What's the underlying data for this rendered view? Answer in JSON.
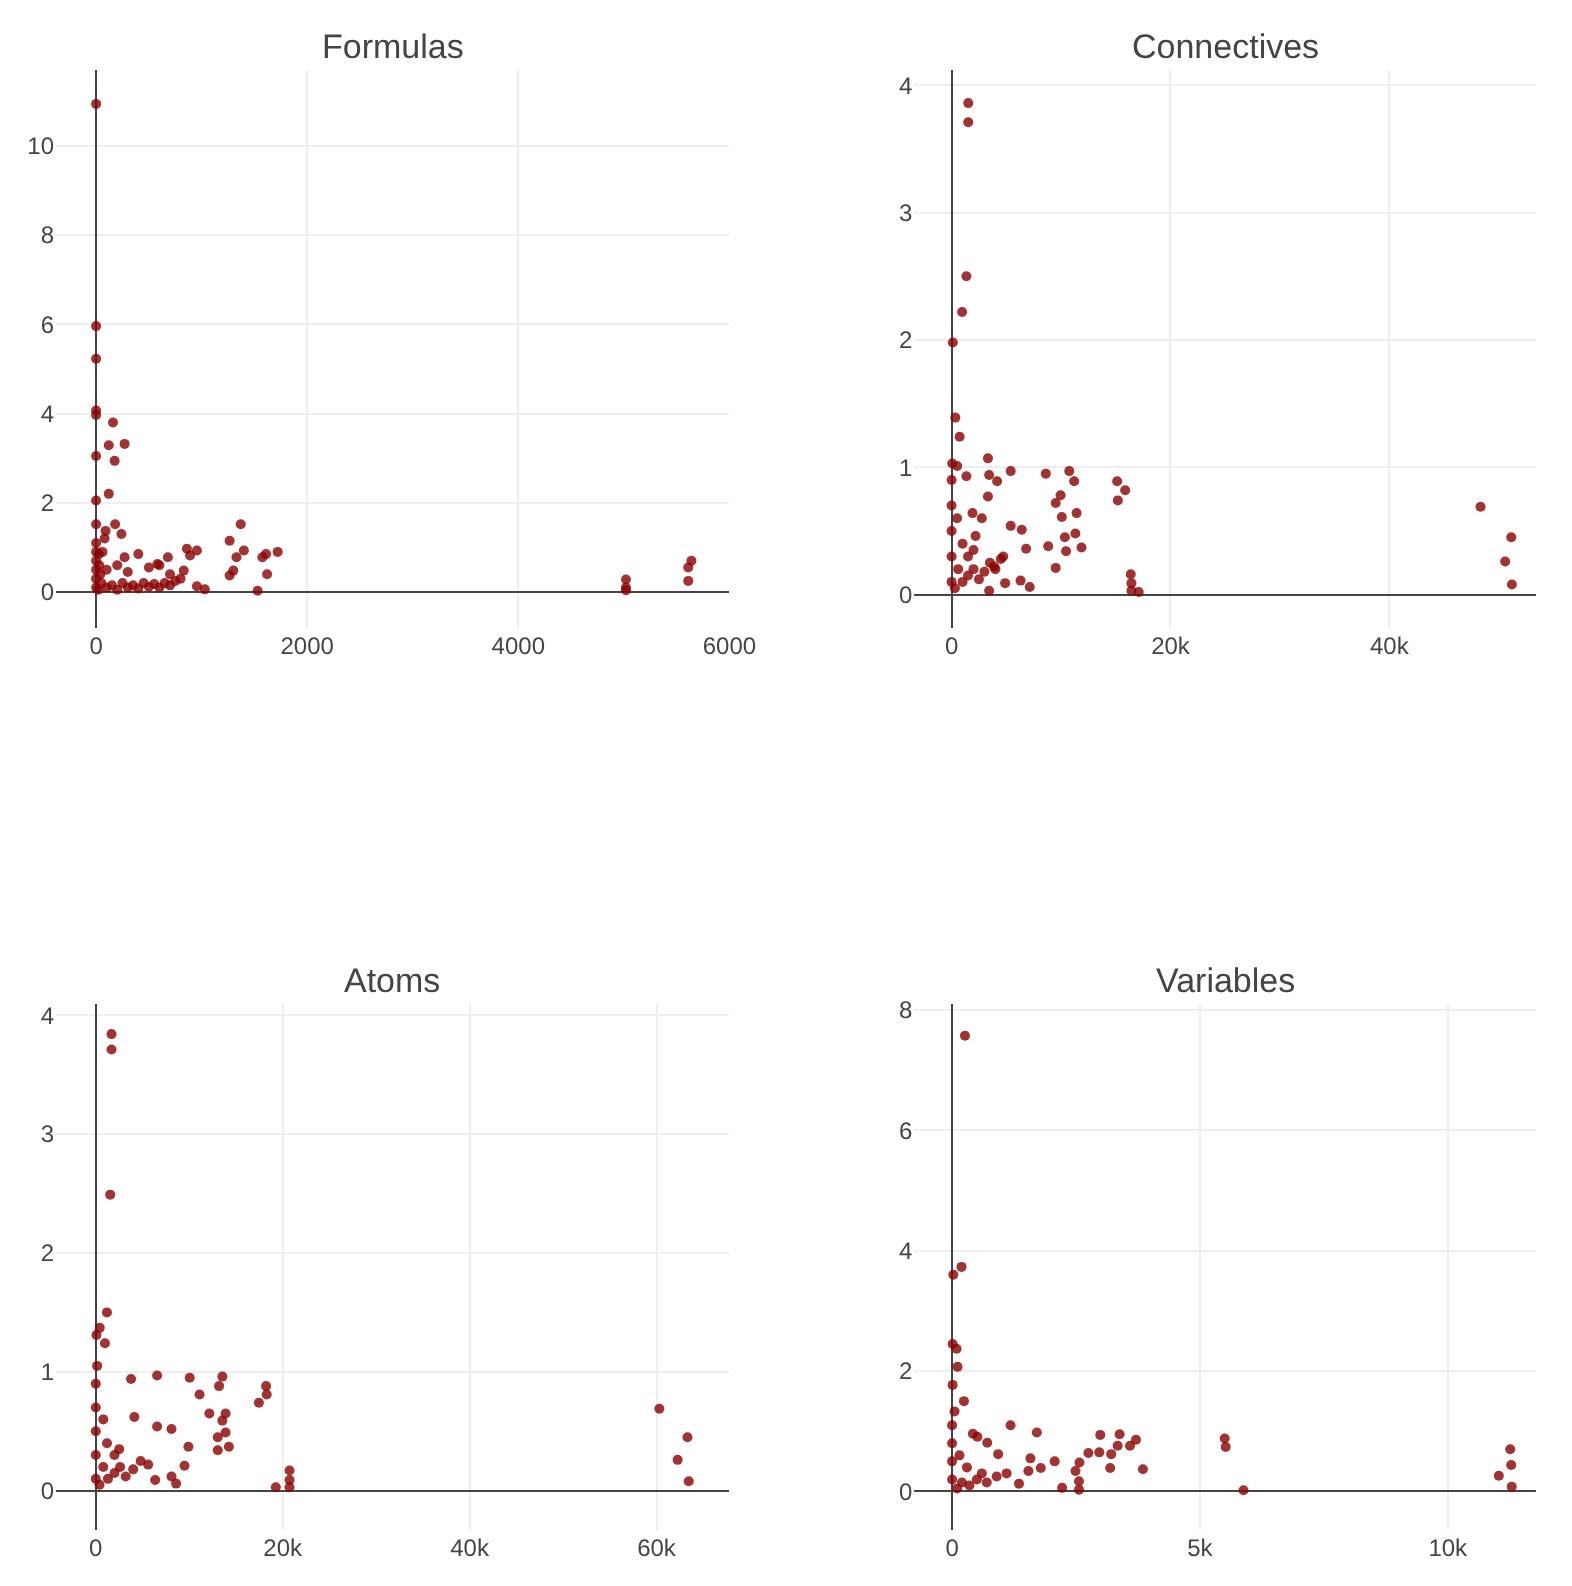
{
  "chart_data": [
    {
      "type": "scatter",
      "title": "Formulas",
      "color": "#8b0000",
      "marker": "circle",
      "grid": true,
      "xlim": [
        -380,
        6000
      ],
      "ylim": [
        -0.8,
        11.7
      ],
      "xticks": [
        0,
        2000,
        4000,
        6000
      ],
      "yticks": [
        0,
        2,
        4,
        6,
        8,
        10
      ],
      "x": [
        0,
        0,
        0,
        0,
        0,
        0,
        0,
        0,
        160,
        120,
        270,
        175,
        120,
        180,
        90,
        240,
        25,
        400,
        270,
        680,
        860,
        955,
        890,
        1265,
        1370,
        1400,
        1330,
        1300,
        1265,
        1610,
        1575,
        1720,
        1620,
        1530,
        955,
        1030,
        830,
        580,
        5020,
        5020,
        5020,
        5640,
        5610,
        5610,
        0,
        0,
        0,
        0,
        0,
        0,
        20,
        50,
        100,
        150,
        200,
        250,
        300,
        350,
        400,
        450,
        500,
        550,
        600,
        650,
        700,
        750,
        800,
        30,
        60,
        80,
        40,
        100,
        200,
        300,
        500,
        600,
        700
      ],
      "values": [
        10.94,
        5.96,
        5.23,
        4.07,
        3.97,
        3.05,
        2.05,
        1.52,
        3.8,
        3.29,
        3.32,
        2.94,
        2.2,
        1.52,
        1.37,
        1.3,
        0.85,
        0.85,
        0.78,
        0.78,
        0.97,
        0.93,
        0.82,
        1.15,
        1.52,
        0.93,
        0.78,
        0.48,
        0.37,
        0.85,
        0.78,
        0.9,
        0.4,
        0.03,
        0.13,
        0.06,
        0.48,
        0.63,
        0.28,
        0.1,
        0.04,
        0.7,
        0.55,
        0.25,
        0.1,
        0.3,
        0.5,
        0.7,
        0.9,
        1.1,
        0.05,
        0.2,
        0.1,
        0.15,
        0.05,
        0.2,
        0.1,
        0.15,
        0.08,
        0.2,
        0.12,
        0.18,
        0.1,
        0.2,
        0.15,
        0.25,
        0.3,
        0.6,
        0.9,
        1.2,
        0.4,
        0.5,
        0.6,
        0.45,
        0.55,
        0.6,
        0.4
      ]
    },
    {
      "type": "scatter",
      "title": "Connectives",
      "color": "#8b0000",
      "marker": "circle",
      "grid": true,
      "xlim": [
        -3400,
        53400
      ],
      "ylim": [
        -0.26,
        4.12
      ],
      "xticks": [
        0,
        {
          "value": 20000,
          "label": "20k"
        },
        {
          "value": 40000,
          "label": "40k"
        }
      ],
      "yticks": [
        0,
        1,
        2,
        3,
        4
      ],
      "x": [
        1520,
        1520,
        1350,
        960,
        110,
        340,
        730,
        60,
        510,
        3320,
        5400,
        3430,
        4160,
        3320,
        8610,
        10750,
        11200,
        9960,
        9510,
        11420,
        10070,
        10350,
        11310,
        11870,
        10460,
        9510,
        8830,
        6810,
        6410,
        5400,
        6300,
        7140,
        4890,
        3430,
        15130,
        15860,
        15190,
        16370,
        16430,
        16430,
        17100,
        48330,
        51140,
        50580,
        51200,
        1910,
        2760,
        2190,
        3880,
        4720,
        1350,
        0,
        0,
        0,
        0,
        0,
        300,
        600,
        1000,
        1500,
        2000,
        2500,
        3000,
        3500,
        4000,
        4500,
        1000,
        500,
        1500,
        2000
      ],
      "values": [
        3.86,
        3.71,
        2.5,
        2.22,
        1.98,
        1.39,
        1.24,
        1.03,
        1.01,
        1.07,
        0.97,
        0.94,
        0.89,
        0.77,
        0.95,
        0.97,
        0.89,
        0.78,
        0.72,
        0.64,
        0.61,
        0.45,
        0.48,
        0.37,
        0.34,
        0.21,
        0.38,
        0.36,
        0.51,
        0.54,
        0.11,
        0.06,
        0.09,
        0.03,
        0.89,
        0.82,
        0.74,
        0.16,
        0.09,
        0.03,
        0.02,
        0.69,
        0.45,
        0.26,
        0.08,
        0.64,
        0.6,
        0.46,
        0.22,
        0.3,
        0.93,
        0.1,
        0.3,
        0.5,
        0.7,
        0.9,
        0.05,
        0.2,
        0.1,
        0.15,
        0.2,
        0.12,
        0.18,
        0.25,
        0.2,
        0.28,
        0.4,
        0.6,
        0.3,
        0.35
      ]
    },
    {
      "type": "scatter",
      "title": "Atoms",
      "color": "#8b0000",
      "marker": "circle",
      "grid": true,
      "xlim": [
        -4260,
        67800
      ],
      "ylim": [
        -0.33,
        4.09
      ],
      "xticks": [
        0,
        {
          "value": 20000,
          "label": "20k"
        },
        {
          "value": 40000,
          "label": "40k"
        },
        {
          "value": 60000,
          "label": "60k"
        }
      ],
      "yticks": [
        0,
        1,
        2,
        3,
        4
      ],
      "x": [
        1680,
        1680,
        1540,
        1190,
        420,
        70,
        980,
        140,
        6560,
        10050,
        3770,
        13540,
        11100,
        13190,
        18220,
        18290,
        17450,
        12150,
        13540,
        13890,
        8100,
        9910,
        9490,
        13050,
        13890,
        14240,
        13050,
        8100,
        8590,
        6350,
        19260,
        20730,
        20730,
        20730,
        60300,
        63310,
        62260,
        63450,
        6560,
        4120,
        0,
        0,
        0,
        0,
        0,
        400,
        800,
        1300,
        2000,
        2600,
        3200,
        4000,
        4800,
        5600,
        1200,
        800,
        2000,
        2500
      ],
      "values": [
        3.84,
        3.71,
        2.49,
        1.5,
        1.37,
        1.31,
        1.24,
        1.05,
        0.97,
        0.95,
        0.94,
        0.96,
        0.81,
        0.88,
        0.88,
        0.81,
        0.74,
        0.65,
        0.59,
        0.65,
        0.52,
        0.37,
        0.21,
        0.45,
        0.49,
        0.37,
        0.34,
        0.12,
        0.06,
        0.09,
        0.03,
        0.17,
        0.09,
        0.03,
        0.69,
        0.45,
        0.26,
        0.08,
        0.54,
        0.62,
        0.1,
        0.3,
        0.5,
        0.7,
        0.9,
        0.05,
        0.2,
        0.1,
        0.15,
        0.2,
        0.12,
        0.18,
        0.25,
        0.22,
        0.4,
        0.6,
        0.3,
        0.35
      ]
    },
    {
      "type": "scatter",
      "title": "Variables",
      "color": "#8b0000",
      "marker": "circle",
      "grid": true,
      "xlim": [
        -760,
        11780
      ],
      "ylim": [
        -0.64,
        8.09
      ],
      "xticks": [
        0,
        {
          "value": 5000,
          "label": "5k"
        },
        {
          "value": 10000,
          "label": "10k"
        }
      ],
      "yticks": [
        0,
        2,
        4,
        6,
        8
      ],
      "x": [
        260,
        190,
        25,
        12,
        90,
        110,
        12,
        240,
        50,
        1180,
        1710,
        420,
        710,
        510,
        930,
        2990,
        3380,
        3710,
        3590,
        3340,
        3210,
        2970,
        2750,
        2570,
        2490,
        3190,
        3850,
        2070,
        1790,
        1540,
        1580,
        2220,
        2560,
        2560,
        5500,
        5520,
        5880,
        11260,
        11280,
        11030,
        11290,
        1350,
        0,
        0,
        0,
        0,
        100,
        200,
        350,
        500,
        700,
        900,
        1100,
        300,
        150,
        600
      ],
      "values": [
        7.57,
        3.73,
        3.6,
        2.45,
        2.37,
        2.07,
        1.77,
        1.5,
        1.33,
        1.1,
        0.98,
        0.96,
        0.81,
        0.91,
        0.62,
        0.94,
        0.95,
        0.86,
        0.76,
        0.76,
        0.62,
        0.65,
        0.64,
        0.48,
        0.34,
        0.39,
        0.37,
        0.5,
        0.39,
        0.34,
        0.55,
        0.06,
        0.17,
        0.03,
        0.88,
        0.74,
        0.02,
        0.7,
        0.44,
        0.26,
        0.08,
        0.13,
        0.2,
        0.5,
        0.8,
        1.1,
        0.05,
        0.15,
        0.1,
        0.2,
        0.15,
        0.25,
        0.3,
        0.4,
        0.6,
        0.3
      ]
    }
  ]
}
